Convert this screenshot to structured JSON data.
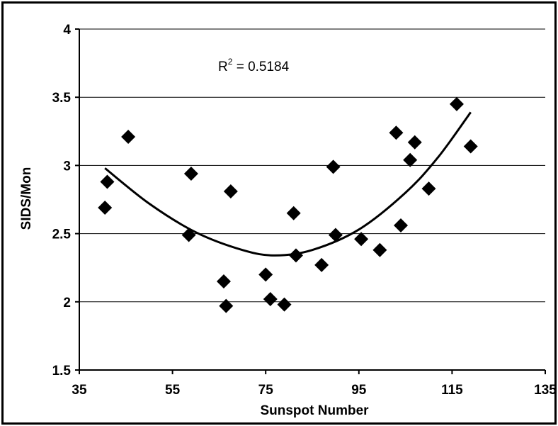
{
  "chart_data": {
    "type": "scatter",
    "title": "",
    "xlabel": "Sunspot Number",
    "ylabel": "SIDS/Mon",
    "xlim": [
      35,
      135
    ],
    "ylim": [
      1.5,
      4
    ],
    "x_ticks": [
      "35",
      "55",
      "75",
      "95",
      "115",
      "135"
    ],
    "y_ticks": [
      "1.5",
      "2",
      "2.5",
      "3",
      "3.5",
      "4"
    ],
    "grid": "horizontal",
    "marker": "diamond",
    "annotation": {
      "base": "R",
      "sup": "2",
      "rest": " = 0.5184"
    },
    "points": [
      {
        "x": 40.5,
        "y": 2.69
      },
      {
        "x": 41.0,
        "y": 2.88
      },
      {
        "x": 45.5,
        "y": 3.21
      },
      {
        "x": 58.5,
        "y": 2.49
      },
      {
        "x": 59.0,
        "y": 2.94
      },
      {
        "x": 66.0,
        "y": 2.15
      },
      {
        "x": 66.5,
        "y": 1.97
      },
      {
        "x": 67.5,
        "y": 2.81
      },
      {
        "x": 75.0,
        "y": 2.2
      },
      {
        "x": 76.0,
        "y": 2.02
      },
      {
        "x": 79.0,
        "y": 1.98
      },
      {
        "x": 81.0,
        "y": 2.65
      },
      {
        "x": 81.5,
        "y": 2.34
      },
      {
        "x": 87.0,
        "y": 2.27
      },
      {
        "x": 89.5,
        "y": 2.99
      },
      {
        "x": 90.0,
        "y": 2.49
      },
      {
        "x": 95.5,
        "y": 2.46
      },
      {
        "x": 99.5,
        "y": 2.38
      },
      {
        "x": 103.0,
        "y": 3.24
      },
      {
        "x": 104.0,
        "y": 2.56
      },
      {
        "x": 106.0,
        "y": 3.04
      },
      {
        "x": 107.0,
        "y": 3.17
      },
      {
        "x": 110.0,
        "y": 2.83
      },
      {
        "x": 116.0,
        "y": 3.45
      },
      {
        "x": 119.0,
        "y": 3.14
      }
    ],
    "trendline": {
      "type": "polynomial-2",
      "x_range": [
        40.5,
        119
      ],
      "points": [
        {
          "x": 40.5,
          "y": 2.98
        },
        {
          "x": 50,
          "y": 2.72
        },
        {
          "x": 60,
          "y": 2.51
        },
        {
          "x": 70,
          "y": 2.38
        },
        {
          "x": 77,
          "y": 2.34
        },
        {
          "x": 85,
          "y": 2.38
        },
        {
          "x": 95,
          "y": 2.53
        },
        {
          "x": 105,
          "y": 2.8
        },
        {
          "x": 112,
          "y": 3.06
        },
        {
          "x": 119,
          "y": 3.39
        }
      ]
    }
  }
}
